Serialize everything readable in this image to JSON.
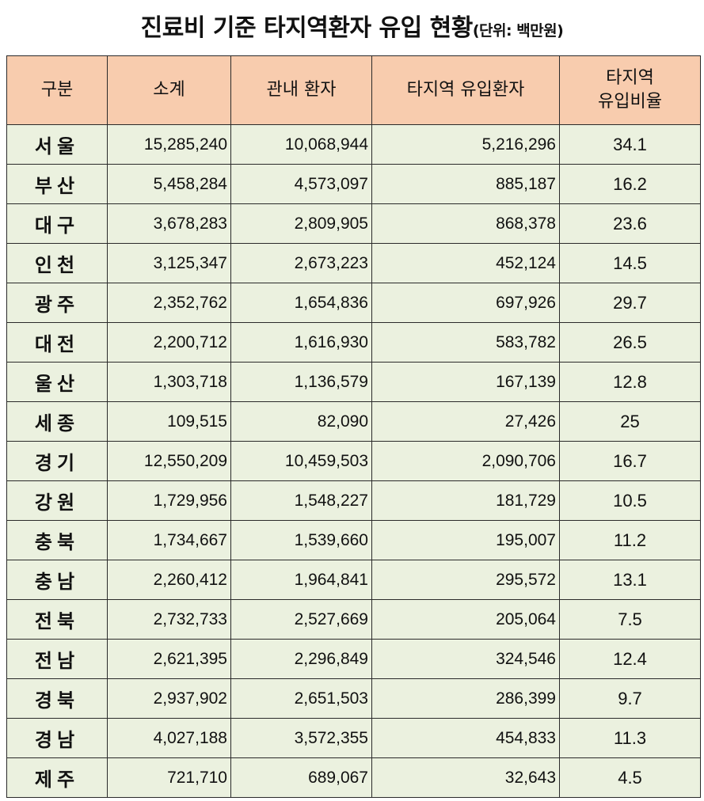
{
  "title": {
    "main": "진료비 기준 타지역환자 유입 현황",
    "unit": "(단위: 백만원)"
  },
  "table": {
    "headers": {
      "region": "구분",
      "subtotal": "소계",
      "local": "관내 환자",
      "inflow": "타지역 유입환자",
      "ratio_line1": "타지역",
      "ratio_line2": "유입비율"
    },
    "rows": [
      {
        "region": "서울",
        "subtotal": "15,285,240",
        "local": "10,068,944",
        "inflow": "5,216,296",
        "ratio": "34.1"
      },
      {
        "region": "부산",
        "subtotal": "5,458,284",
        "local": "4,573,097",
        "inflow": "885,187",
        "ratio": "16.2"
      },
      {
        "region": "대구",
        "subtotal": "3,678,283",
        "local": "2,809,905",
        "inflow": "868,378",
        "ratio": "23.6"
      },
      {
        "region": "인천",
        "subtotal": "3,125,347",
        "local": "2,673,223",
        "inflow": "452,124",
        "ratio": "14.5"
      },
      {
        "region": "광주",
        "subtotal": "2,352,762",
        "local": "1,654,836",
        "inflow": "697,926",
        "ratio": "29.7"
      },
      {
        "region": "대전",
        "subtotal": "2,200,712",
        "local": "1,616,930",
        "inflow": "583,782",
        "ratio": "26.5"
      },
      {
        "region": "울산",
        "subtotal": "1,303,718",
        "local": "1,136,579",
        "inflow": "167,139",
        "ratio": "12.8"
      },
      {
        "region": "세종",
        "subtotal": "109,515",
        "local": "82,090",
        "inflow": "27,426",
        "ratio": "25"
      },
      {
        "region": "경기",
        "subtotal": "12,550,209",
        "local": "10,459,503",
        "inflow": "2,090,706",
        "ratio": "16.7"
      },
      {
        "region": "강원",
        "subtotal": "1,729,956",
        "local": "1,548,227",
        "inflow": "181,729",
        "ratio": "10.5"
      },
      {
        "region": "충북",
        "subtotal": "1,734,667",
        "local": "1,539,660",
        "inflow": "195,007",
        "ratio": "11.2"
      },
      {
        "region": "충남",
        "subtotal": "2,260,412",
        "local": "1,964,841",
        "inflow": "295,572",
        "ratio": "13.1"
      },
      {
        "region": "전북",
        "subtotal": "2,732,733",
        "local": "2,527,669",
        "inflow": "205,064",
        "ratio": "7.5"
      },
      {
        "region": "전남",
        "subtotal": "2,621,395",
        "local": "2,296,849",
        "inflow": "324,546",
        "ratio": "12.4"
      },
      {
        "region": "경북",
        "subtotal": "2,937,902",
        "local": "2,651,503",
        "inflow": "286,399",
        "ratio": "9.7"
      },
      {
        "region": "경남",
        "subtotal": "4,027,188",
        "local": "3,572,355",
        "inflow": "454,833",
        "ratio": "11.3"
      },
      {
        "region": "제주",
        "subtotal": "721,710",
        "local": "689,067",
        "inflow": "32,643",
        "ratio": "4.5"
      }
    ]
  },
  "colors": {
    "header_bg": "#f8ccae",
    "body_bg": "#ebf1df",
    "border": "#2a2a2a"
  }
}
